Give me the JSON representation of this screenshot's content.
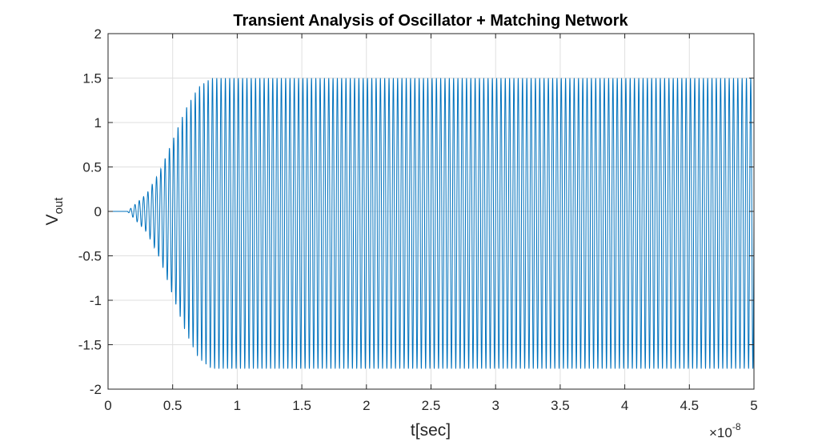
{
  "chart_data": {
    "type": "line",
    "title": "Transient Analysis of Oscillator + Matching Network",
    "xlabel": "t[sec]",
    "ylabel": {
      "base": "V",
      "subscript": "out"
    },
    "x_exponent_label": {
      "prefix": "×10",
      "exponent": "-8"
    },
    "x_scale_factor": 1e-08,
    "xlim": [
      0,
      5
    ],
    "ylim": [
      -2,
      2
    ],
    "x_ticks": [
      "0",
      "0.5",
      "1",
      "1.5",
      "2",
      "2.5",
      "3",
      "3.5",
      "4",
      "4.5",
      "5"
    ],
    "y_ticks": [
      "2",
      "1.5",
      "1",
      "0.5",
      "0",
      "-0.5",
      "-1",
      "-1.5",
      "-2"
    ],
    "grid": true,
    "line_color": "#0072BD",
    "series": [
      {
        "signal": "oscillation",
        "t_start": 0,
        "t_end": 5,
        "onset": 0.15,
        "steady_from": 0.8,
        "cycles_per_unit": 30,
        "steady_upper": 1.5,
        "steady_lower": -1.77,
        "growth_envelope": [
          [
            0.15,
            0.0
          ],
          [
            0.3,
            0.2
          ],
          [
            0.4,
            0.45
          ],
          [
            0.5,
            0.8
          ],
          [
            0.6,
            1.15
          ],
          [
            0.7,
            1.4
          ],
          [
            0.8,
            1.5
          ]
        ]
      }
    ]
  }
}
